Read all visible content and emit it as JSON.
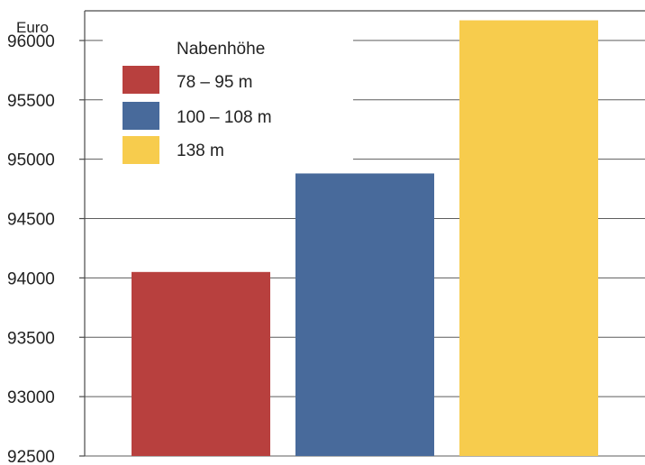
{
  "chart_data": {
    "type": "bar",
    "ylabel": "Euro",
    "ylim": [
      92500,
      96250
    ],
    "yticks": [
      92500,
      93000,
      93500,
      94000,
      94500,
      95000,
      95500,
      96000
    ],
    "legend": {
      "title": "Nabenhöhe",
      "placement": "top-left"
    },
    "grid": true,
    "categories": [
      "78 – 95 m",
      "100 – 108 m",
      "138 m"
    ],
    "values": [
      94050,
      94880,
      96170
    ],
    "colors": [
      "#b8403e",
      "#486a9b",
      "#f7cc4d"
    ]
  }
}
